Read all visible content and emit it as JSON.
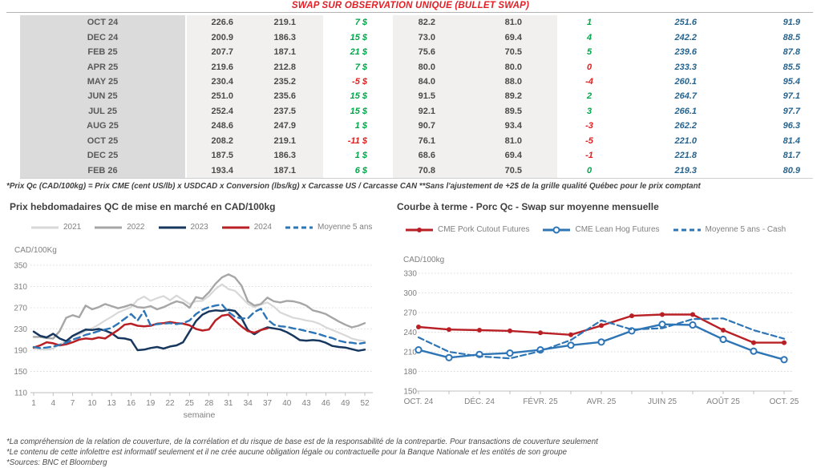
{
  "title": "SWAP SUR OBSERVATION UNIQUE (BULLET SWAP)",
  "colors": {
    "title_red": "#E31E24",
    "positive_green": "#00A74A",
    "negative_red": "#E02020",
    "table_blue": "#27648E",
    "series_navy": "#17375E",
    "series_red": "#B92025",
    "series_blue": "#2E75B6",
    "series_gray_2022": "#A6A6A6",
    "series_gray_2021": "#D8D8D8"
  },
  "table": {
    "rows": [
      {
        "month": "OCT 24",
        "qc_prix": "226.6",
        "qc_swap": "219.1",
        "qc_diff": "7 $",
        "qc_diff_sign": "pos",
        "us_prix": "82.2",
        "us_swap": "81.0",
        "us_diff": "1",
        "us_diff_sign": "pos",
        "fwd_cad": "251.6",
        "fwd_us": "91.9"
      },
      {
        "month": "DEC 24",
        "qc_prix": "200.9",
        "qc_swap": "186.3",
        "qc_diff": "15 $",
        "qc_diff_sign": "pos",
        "us_prix": "73.0",
        "us_swap": "69.4",
        "us_diff": "4",
        "us_diff_sign": "pos",
        "fwd_cad": "242.2",
        "fwd_us": "88.5"
      },
      {
        "month": "FEB 25",
        "qc_prix": "207.7",
        "qc_swap": "187.1",
        "qc_diff": "21 $",
        "qc_diff_sign": "pos",
        "us_prix": "75.6",
        "us_swap": "70.5",
        "us_diff": "5",
        "us_diff_sign": "pos",
        "fwd_cad": "239.6",
        "fwd_us": "87.8"
      },
      {
        "month": "APR 25",
        "qc_prix": "219.6",
        "qc_swap": "212.8",
        "qc_diff": "7 $",
        "qc_diff_sign": "pos",
        "us_prix": "80.0",
        "us_swap": "80.0",
        "us_diff": "0",
        "us_diff_sign": "neg",
        "fwd_cad": "233.3",
        "fwd_us": "85.5"
      },
      {
        "month": "MAY 25",
        "qc_prix": "230.4",
        "qc_swap": "235.2",
        "qc_diff": "-5 $",
        "qc_diff_sign": "neg",
        "us_prix": "84.0",
        "us_swap": "88.0",
        "us_diff": "-4",
        "us_diff_sign": "neg",
        "fwd_cad": "260.1",
        "fwd_us": "95.4"
      },
      {
        "month": "JUN 25",
        "qc_prix": "251.0",
        "qc_swap": "235.6",
        "qc_diff": "15 $",
        "qc_diff_sign": "pos",
        "us_prix": "91.5",
        "us_swap": "89.2",
        "us_diff": "2",
        "us_diff_sign": "pos",
        "fwd_cad": "264.7",
        "fwd_us": "97.1"
      },
      {
        "month": "JUL 25",
        "qc_prix": "252.4",
        "qc_swap": "237.5",
        "qc_diff": "15 $",
        "qc_diff_sign": "pos",
        "us_prix": "92.1",
        "us_swap": "89.5",
        "us_diff": "3",
        "us_diff_sign": "pos",
        "fwd_cad": "266.1",
        "fwd_us": "97.7"
      },
      {
        "month": "AUG 25",
        "qc_prix": "248.6",
        "qc_swap": "247.9",
        "qc_diff": "1 $",
        "qc_diff_sign": "pos",
        "us_prix": "90.7",
        "us_swap": "93.4",
        "us_diff": "-3",
        "us_diff_sign": "neg",
        "fwd_cad": "262.2",
        "fwd_us": "96.3"
      },
      {
        "month": "OCT 25",
        "qc_prix": "208.2",
        "qc_swap": "219.1",
        "qc_diff": "-11 $",
        "qc_diff_sign": "neg",
        "us_prix": "76.1",
        "us_swap": "81.0",
        "us_diff": "-5",
        "us_diff_sign": "neg",
        "fwd_cad": "221.0",
        "fwd_us": "81.4"
      },
      {
        "month": "DEC 25",
        "qc_prix": "187.5",
        "qc_swap": "186.3",
        "qc_diff": "1 $",
        "qc_diff_sign": "pos",
        "us_prix": "68.6",
        "us_swap": "69.4",
        "us_diff": "-1",
        "us_diff_sign": "neg",
        "fwd_cad": "221.8",
        "fwd_us": "81.7"
      },
      {
        "month": "FEB 26",
        "qc_prix": "193.4",
        "qc_swap": "187.1",
        "qc_diff": "6 $",
        "qc_diff_sign": "pos",
        "us_prix": "70.8",
        "us_swap": "70.5",
        "us_diff": "0",
        "us_diff_sign": "pos",
        "fwd_cad": "219.3",
        "fwd_us": "80.9"
      }
    ]
  },
  "table_footnote": "*Prix Qc (CAD/100kg) = Prix CME (cent US/lb) x USDCAD x Conversion (lbs/kg) x Carcasse US / Carcasse CAN **Sans l'ajustement de +2$ de la grille qualité Québec pour le prix comptant",
  "chart_data": [
    {
      "type": "line",
      "title": "Prix hebdomadaires QC de mise en marché en CAD/100kg",
      "unit_label": "CAD/100Kg",
      "xlabel": "semaine",
      "x_count": 52,
      "x_tick_values": [
        1,
        4,
        7,
        10,
        13,
        16,
        19,
        22,
        25,
        28,
        31,
        34,
        37,
        40,
        43,
        46,
        49,
        52
      ],
      "ylim": [
        110,
        350
      ],
      "ystep": 40,
      "grid": "dotted-horizontal",
      "legend_position": "top",
      "series": [
        {
          "name": "2021",
          "color": "#D8D8D8",
          "width": 2.2,
          "values": [
            193,
            192,
            191,
            193,
            201,
            206,
            216,
            220,
            226,
            231,
            238,
            246,
            253,
            261,
            266,
            271,
            285,
            291,
            283,
            288,
            292,
            284,
            293,
            285,
            277,
            282,
            283,
            292,
            305,
            314,
            305,
            302,
            290,
            277,
            271,
            276,
            280,
            272,
            261,
            256,
            251,
            249,
            246,
            244,
            240,
            233,
            228,
            223,
            218,
            212,
            209,
            207
          ]
        },
        {
          "name": "2022",
          "color": "#A6A6A6",
          "width": 2.4,
          "values": [
            215,
            215,
            213,
            212,
            226,
            251,
            256,
            252,
            274,
            267,
            271,
            277,
            273,
            269,
            272,
            276,
            271,
            270,
            273,
            267,
            271,
            277,
            282,
            279,
            270,
            290,
            287,
            299,
            315,
            327,
            333,
            327,
            312,
            282,
            274,
            277,
            289,
            282,
            280,
            283,
            282,
            279,
            274,
            265,
            262,
            258,
            251,
            244,
            238,
            233,
            236,
            241
          ]
        },
        {
          "name": "2023",
          "color": "#17375E",
          "width": 2.5,
          "values": [
            225,
            217,
            214,
            221,
            212,
            207,
            217,
            223,
            229,
            228,
            230,
            227,
            222,
            213,
            212,
            209,
            190,
            191,
            194,
            196,
            193,
            197,
            199,
            205,
            225,
            245,
            257,
            263,
            265,
            264,
            266,
            264,
            251,
            228,
            220,
            228,
            233,
            231,
            229,
            224,
            217,
            209,
            208,
            209,
            208,
            204,
            198,
            196,
            195,
            192,
            189,
            191
          ]
        },
        {
          "name": "2024",
          "color": "#B92025",
          "width": 2.5,
          "values": [
            195,
            199,
            205,
            203,
            199,
            201,
            205,
            210,
            212,
            211,
            214,
            212,
            220,
            228,
            238,
            240,
            236,
            235,
            236,
            240,
            241,
            243,
            241,
            240,
            237,
            230,
            227,
            229,
            246,
            255,
            257,
            246,
            235,
            226,
            223,
            228,
            231
          ]
        },
        {
          "name": "Moyenne 5 ans",
          "color": "#2E75B6",
          "width": 2.4,
          "dash": "8 5",
          "values": [
            196,
            194,
            195,
            197,
            200,
            204,
            210,
            214,
            219,
            222,
            226,
            229,
            232,
            240,
            249,
            258,
            246,
            264,
            237,
            239,
            240,
            241,
            239,
            241,
            246,
            258,
            266,
            271,
            274,
            276,
            262,
            253,
            250,
            250,
            262,
            268,
            248,
            238,
            235,
            234,
            231,
            229,
            226,
            223,
            220,
            216,
            213,
            208,
            205,
            204,
            202,
            204
          ]
        }
      ]
    },
    {
      "type": "line",
      "title": "Courbe à terme - Porc Qc - Swap sur moyenne mensuelle",
      "unit_label": "CAD/100kg",
      "x_count": 13,
      "x_tick_labels": [
        "OCT. 24",
        "DÉC. 24",
        "FÉVR. 25",
        "AVR. 25",
        "JUIN 25",
        "AOÛT 25",
        "OCT. 25"
      ],
      "x_tick_positions": [
        0,
        2,
        4,
        6,
        8,
        10,
        12
      ],
      "ylim": [
        150,
        330
      ],
      "ystep": 30,
      "grid": "dotted-horizontal",
      "legend_position": "top",
      "series": [
        {
          "name": "CME Pork Cutout Futures",
          "color": "#B92025",
          "width": 2.4,
          "marker": "dot",
          "values": [
            248,
            244,
            243,
            242,
            239,
            236,
            250,
            265,
            267,
            267,
            243,
            224,
            224
          ]
        },
        {
          "name": "CME Lean Hog Futures",
          "color": "#2E75B6",
          "width": 2.4,
          "marker": "circle",
          "values": [
            213,
            201,
            206,
            208,
            213,
            220,
            225,
            242,
            252,
            251,
            229,
            211,
            198
          ]
        },
        {
          "name": "Moyenne 5 ans - Cash",
          "color": "#2E75B6",
          "width": 2.2,
          "dash": "7 4",
          "values": [
            232,
            210,
            203,
            200,
            211,
            228,
            258,
            244,
            246,
            260,
            261,
            243,
            230
          ]
        }
      ]
    }
  ],
  "footnotes": [
    "*La compréhension de la relation de couverture, de la corrélation et du risque de base est de la responsabilité de la contrepartie. Pour transactions de couverture seulement",
    "*Le contenu de cette infolettre est informatif seulement et il ne crée aucune obligation légale ou contractuelle pour la Banque Nationale et les entités de son groupe",
    "*Sources: BNC et Bloomberg"
  ]
}
